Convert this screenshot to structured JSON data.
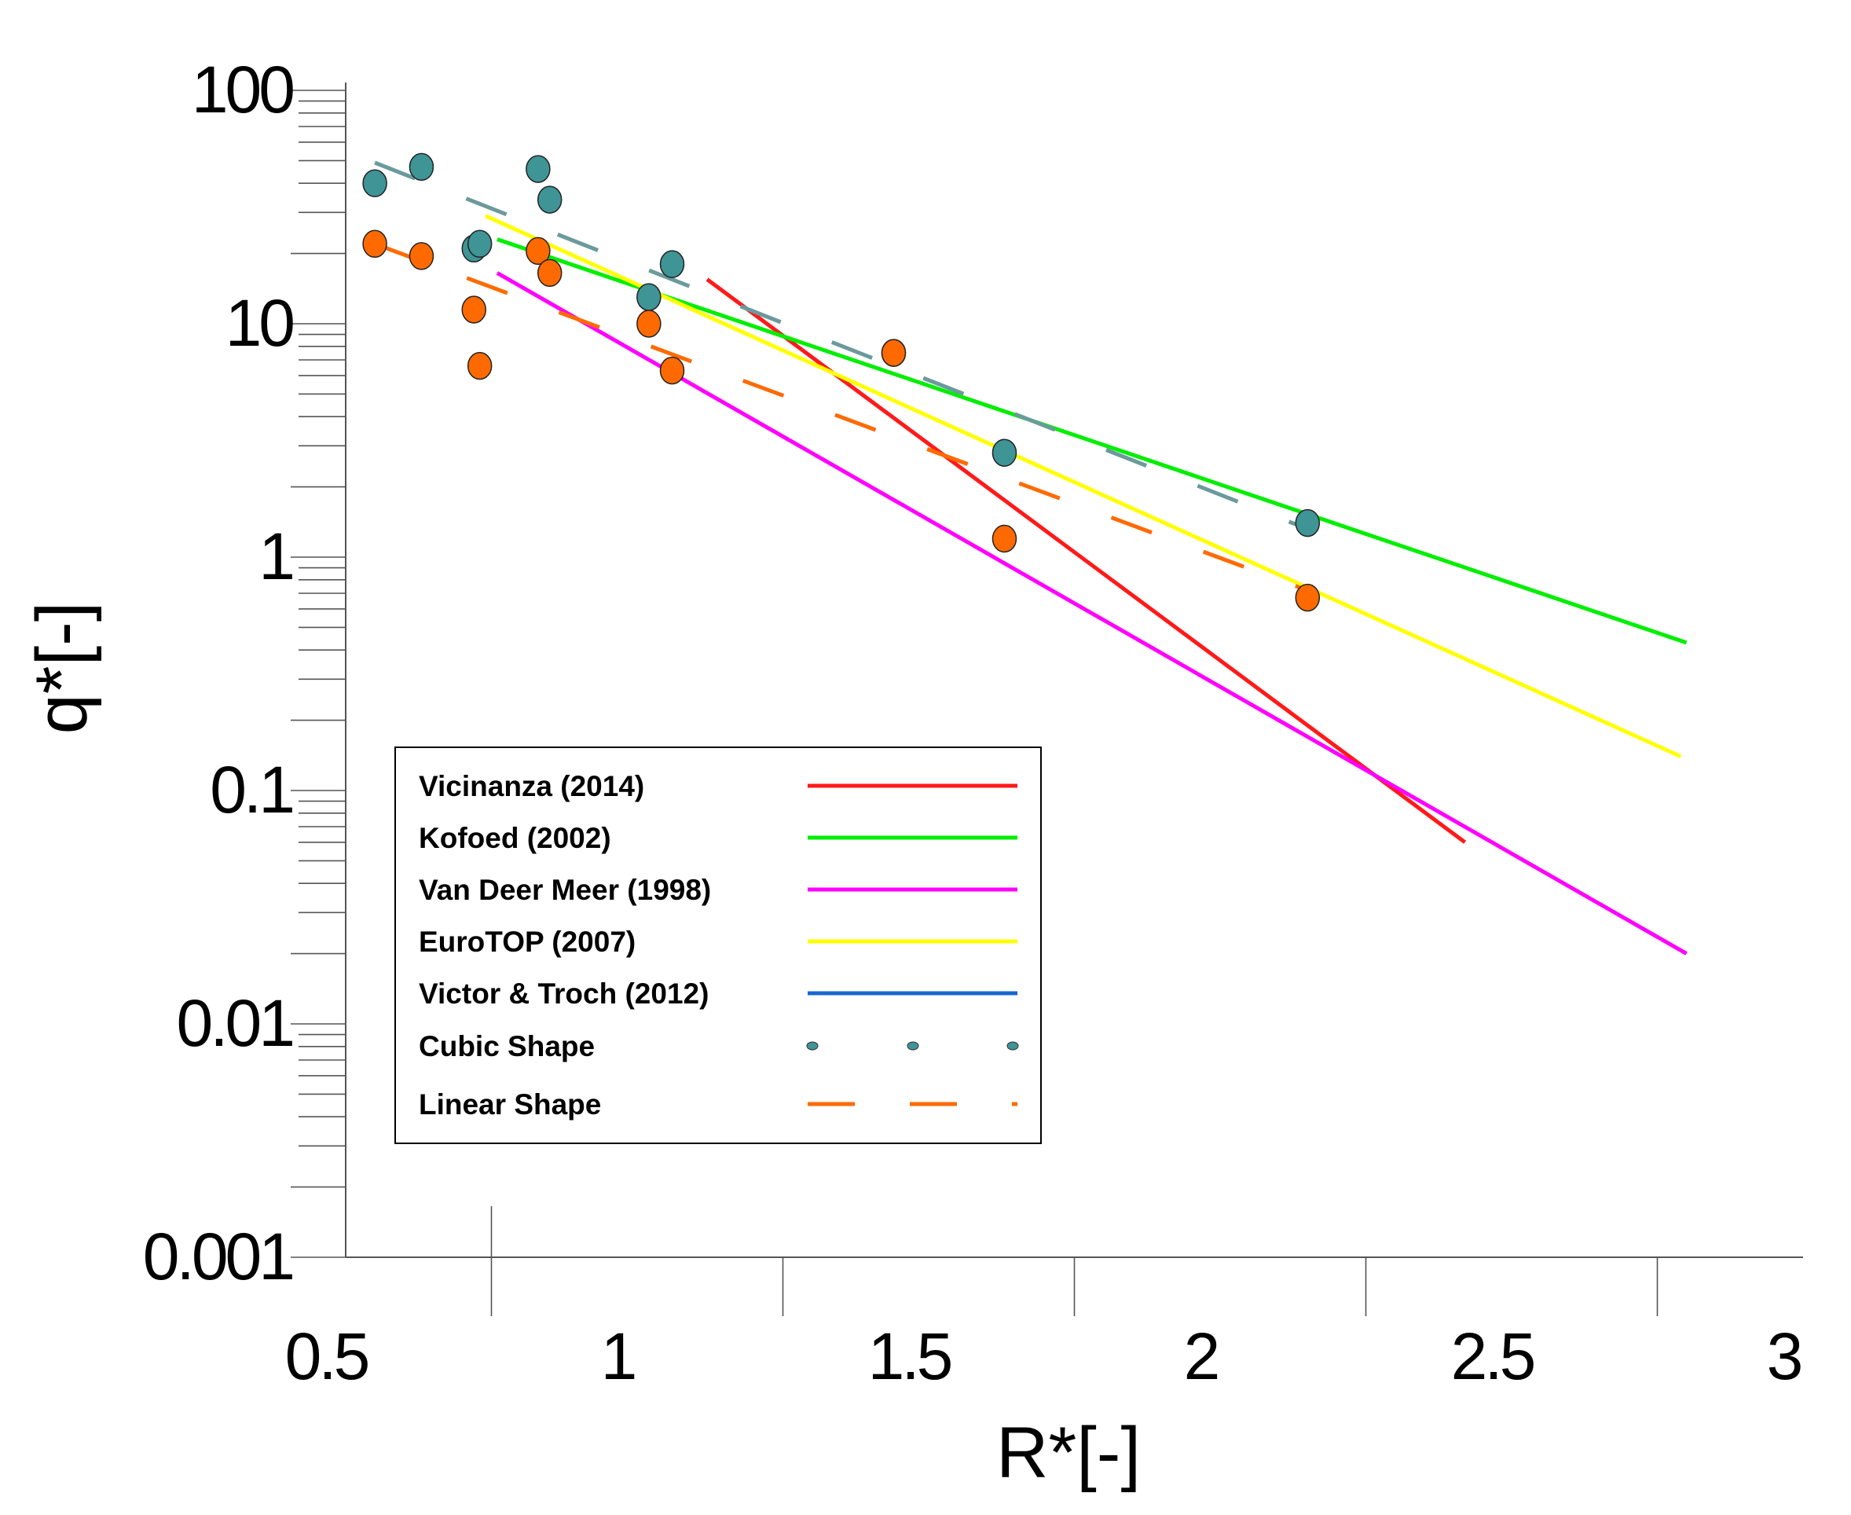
{
  "chart_data": {
    "type": "scatter",
    "title": "",
    "xlabel": "R*[-]",
    "ylabel": "q*[-]",
    "xscale": "linear",
    "yscale": "log",
    "xlim": [
      0.5,
      3.0
    ],
    "ylim": [
      0.001,
      100
    ],
    "xticks": [
      0.5,
      1.0,
      1.5,
      2.0,
      2.5,
      3.0
    ],
    "xtick_labels": [
      "0.5",
      "1",
      "1.5",
      "2",
      "2.5",
      "3"
    ],
    "yticks": [
      0.001,
      0.01,
      0.1,
      1,
      10,
      100
    ],
    "ytick_labels": [
      "0.001",
      "0.01",
      "0.1",
      "1",
      "10",
      "100"
    ],
    "grid": false,
    "legend_position": "lower-left",
    "series": [
      {
        "name": "Vicinanza (2014)",
        "kind": "line",
        "color": "#ff1a1a",
        "style": "solid",
        "x": [
          1.12,
          2.42
        ],
        "y": [
          15.5,
          0.06
        ]
      },
      {
        "name": "Kofoed (2002)",
        "kind": "line",
        "color": "#00ee00",
        "style": "solid",
        "x": [
          0.76,
          2.8
        ],
        "y": [
          23,
          0.43
        ]
      },
      {
        "name": "Van Deer Meer (1998)",
        "kind": "line",
        "color": "#ff00ff",
        "style": "solid",
        "x": [
          0.76,
          2.8
        ],
        "y": [
          16.5,
          0.02
        ]
      },
      {
        "name": "EuroTOP (2007)",
        "kind": "line",
        "color": "#ffff00",
        "style": "solid",
        "x": [
          0.74,
          2.79
        ],
        "y": [
          29,
          0.14
        ]
      },
      {
        "name": "Victor & Troch (2012)",
        "kind": "line",
        "color": "#1a66cc",
        "style": "solid",
        "x": [],
        "y": []
      },
      {
        "name": "Cubic Shape",
        "kind": "scatter-fit",
        "color": "#3f9496",
        "fit_color": "#6a9a9c",
        "x": [
          0.55,
          0.63,
          0.72,
          0.73,
          0.83,
          0.85,
          1.02,
          1.06,
          1.44,
          1.63,
          2.15
        ],
        "y": [
          40,
          47,
          21,
          22,
          46,
          34,
          13,
          18,
          7.5,
          2.8,
          1.4
        ],
        "fit_x": [
          0.55,
          2.15
        ],
        "fit_y": [
          49,
          1.32
        ]
      },
      {
        "name": "Linear Shape",
        "kind": "scatter-fit",
        "color": "#ff6a00",
        "fit_color": "#ff6a00",
        "x": [
          0.55,
          0.63,
          0.72,
          0.73,
          0.83,
          0.85,
          1.02,
          1.06,
          1.44,
          1.63,
          2.15
        ],
        "y": [
          22,
          19.5,
          11.5,
          6.6,
          20.5,
          16.5,
          10,
          6.3,
          7.5,
          1.2,
          0.67
        ],
        "fit_x": [
          0.55,
          2.15
        ],
        "fit_y": [
          22,
          0.72
        ]
      }
    ]
  }
}
